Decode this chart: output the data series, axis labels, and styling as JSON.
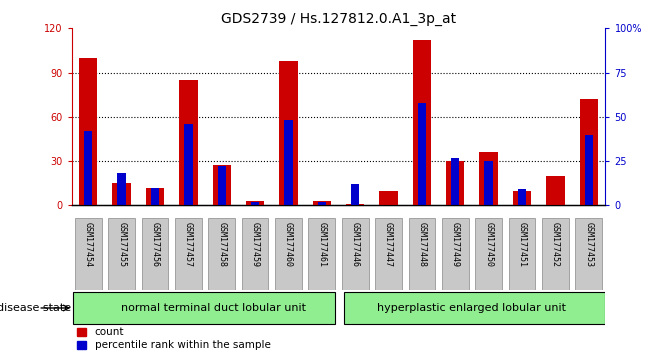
{
  "title": "GDS2739 / Hs.127812.0.A1_3p_at",
  "samples": [
    "GSM177454",
    "GSM177455",
    "GSM177456",
    "GSM177457",
    "GSM177458",
    "GSM177459",
    "GSM177460",
    "GSM177461",
    "GSM177446",
    "GSM177447",
    "GSM177448",
    "GSM177449",
    "GSM177450",
    "GSM177451",
    "GSM177452",
    "GSM177453"
  ],
  "count": [
    100,
    15,
    12,
    85,
    27,
    3,
    98,
    3,
    1,
    10,
    112,
    30,
    36,
    10,
    20,
    72
  ],
  "percentile": [
    42,
    18,
    10,
    46,
    22,
    2,
    48,
    2,
    12,
    0,
    58,
    27,
    25,
    9,
    0,
    40
  ],
  "ylim_left": [
    0,
    120
  ],
  "ylim_right": [
    0,
    100
  ],
  "yticks_left": [
    0,
    30,
    60,
    90,
    120
  ],
  "yticks_right": [
    0,
    25,
    50,
    75,
    100
  ],
  "ytick_labels_right": [
    "0",
    "25",
    "50",
    "75",
    "100%"
  ],
  "red_color": "#cc0000",
  "blue_color": "#0000cc",
  "group1_label": "normal terminal duct lobular unit",
  "group2_label": "hyperplastic enlarged lobular unit",
  "group1_count": 8,
  "group2_count": 8,
  "disease_state_label": "disease state",
  "legend_count": "count",
  "legend_percentile": "percentile rank within the sample",
  "group1_bg": "#90ee90",
  "group2_bg": "#90ee90",
  "title_fontsize": 10,
  "tick_fontsize": 7,
  "label_fontsize": 8
}
